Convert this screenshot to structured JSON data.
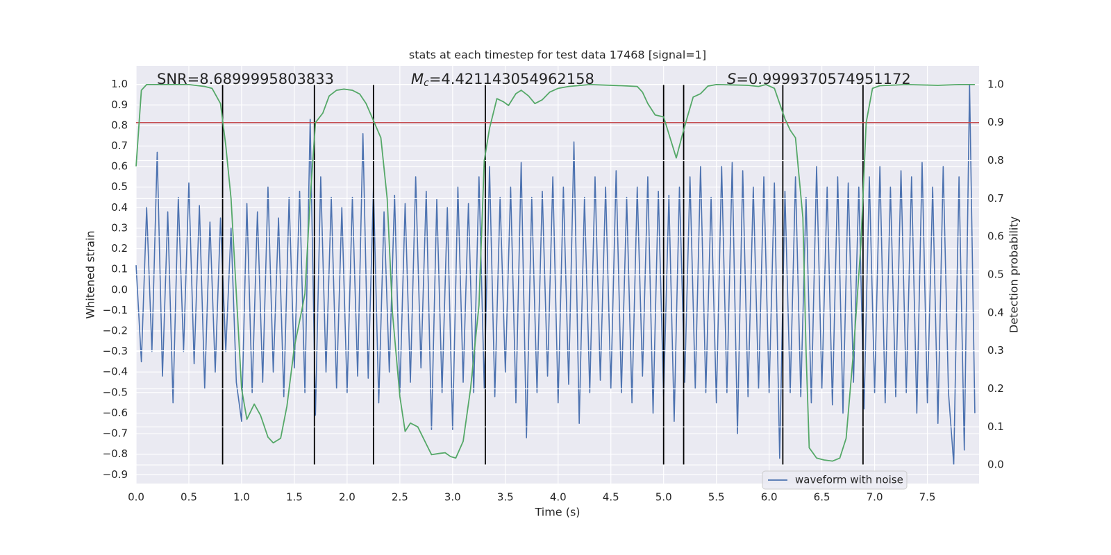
{
  "chart_data": {
    "type": "line",
    "title": "stats at each timestep for test data 17468 [signal=1]",
    "xlabel": "Time (s)",
    "ylabel": "Whitened strain",
    "y2label": "Detection probability",
    "annotations": [
      {
        "text": "SNR=8.6899995803833"
      },
      {
        "symbol": "M",
        "subscript": "c",
        "text": "=4.421143054962158"
      },
      {
        "symbol": "S",
        "text": "=0.9999370574951172"
      }
    ],
    "xlim": [
      0,
      7.99
    ],
    "ylim": [
      -0.943,
      1.09
    ],
    "y2lim": [
      -0.049,
      1.049
    ],
    "xticks": [
      {
        "value": 0,
        "label": "0.0"
      },
      0.5,
      {
        "value": 1,
        "label": "1.0"
      },
      1.5,
      {
        "value": 2,
        "label": "2.0"
      },
      2.5,
      {
        "value": 3,
        "label": "3.0"
      },
      3.5,
      {
        "value": 4,
        "label": "4.0"
      },
      4.5,
      {
        "value": 5,
        "label": "5.0"
      },
      5.5,
      {
        "value": 6,
        "label": "6.0"
      },
      6.5,
      {
        "value": 7,
        "label": "7.0"
      },
      7.5
    ],
    "yticks": [
      {
        "value": -0.9,
        "label": "−0.9"
      },
      {
        "value": -0.8,
        "label": "−0.8"
      },
      {
        "value": -0.7,
        "label": "−0.7"
      },
      {
        "value": -0.6,
        "label": "−0.6"
      },
      {
        "value": -0.5,
        "label": "−0.5"
      },
      {
        "value": -0.4,
        "label": "−0.4"
      },
      {
        "value": -0.3,
        "label": "−0.3"
      },
      {
        "value": -0.2,
        "label": "−0.2"
      },
      {
        "value": -0.1,
        "label": "−0.1"
      },
      {
        "value": 0,
        "label": "0.0"
      },
      0.1,
      0.2,
      0.3,
      0.4,
      0.5,
      0.6,
      0.7,
      0.8,
      0.9,
      {
        "value": 1,
        "label": "1.0"
      }
    ],
    "y2ticks": [
      {
        "value": 0,
        "label": "0.0"
      },
      0.1,
      0.2,
      0.3,
      0.4,
      0.5,
      0.6,
      0.7,
      0.8,
      0.9,
      {
        "value": 1,
        "label": "1.0"
      }
    ],
    "grid": true,
    "legend": "lower right",
    "series": [
      {
        "name": "waveform with noise",
        "color": "#4c72b0",
        "axis": "y",
        "x": [
          0,
          0.05,
          0.1,
          0.15,
          0.2,
          0.25,
          0.3,
          0.35,
          0.4,
          0.45,
          0.5,
          0.55,
          0.6,
          0.65,
          0.7,
          0.75,
          0.8,
          0.85,
          0.9,
          0.95,
          1,
          1.05,
          1.1,
          1.15,
          1.2,
          1.25,
          1.3,
          1.35,
          1.4,
          1.45,
          1.5,
          1.55,
          1.6,
          1.65,
          1.7,
          1.75,
          1.8,
          1.85,
          1.9,
          1.95,
          2,
          2.05,
          2.1,
          2.15,
          2.2,
          2.25,
          2.3,
          2.35,
          2.4,
          2.45,
          2.5,
          2.55,
          2.6,
          2.65,
          2.7,
          2.75,
          2.8,
          2.85,
          2.9,
          2.95,
          3,
          3.05,
          3.1,
          3.15,
          3.2,
          3.25,
          3.3,
          3.35,
          3.4,
          3.45,
          3.5,
          3.55,
          3.6,
          3.65,
          3.7,
          3.75,
          3.8,
          3.85,
          3.9,
          3.95,
          4,
          4.05,
          4.1,
          4.15,
          4.2,
          4.25,
          4.3,
          4.35,
          4.4,
          4.45,
          4.5,
          4.55,
          4.6,
          4.65,
          4.7,
          4.75,
          4.8,
          4.85,
          4.9,
          4.95,
          5,
          5.05,
          5.1,
          5.15,
          5.2,
          5.25,
          5.3,
          5.35,
          5.4,
          5.45,
          5.5,
          5.55,
          5.6,
          5.65,
          5.7,
          5.75,
          5.8,
          5.85,
          5.9,
          5.95,
          6,
          6.05,
          6.1,
          6.15,
          6.2,
          6.25,
          6.3,
          6.35,
          6.4,
          6.45,
          6.5,
          6.55,
          6.6,
          6.65,
          6.7,
          6.75,
          6.8,
          6.85,
          6.9,
          6.95,
          7,
          7.05,
          7.1,
          7.15,
          7.2,
          7.25,
          7.3,
          7.35,
          7.4,
          7.45,
          7.5,
          7.55,
          7.6,
          7.65,
          7.7,
          7.75,
          7.8,
          7.85,
          7.9,
          7.95
        ],
        "values": [
          0.12,
          -0.35,
          0.4,
          -0.3,
          0.67,
          -0.42,
          0.38,
          -0.55,
          0.45,
          -0.3,
          0.52,
          -0.36,
          0.41,
          -0.48,
          0.33,
          -0.4,
          0.35,
          -0.3,
          0.3,
          -0.45,
          -0.64,
          0.42,
          -0.5,
          0.38,
          -0.45,
          0.5,
          -0.4,
          0.35,
          -0.52,
          0.45,
          -0.38,
          0.48,
          -0.5,
          0.83,
          -0.61,
          0.55,
          -0.4,
          0.45,
          -0.48,
          0.4,
          -0.5,
          0.45,
          -0.42,
          0.76,
          -0.43,
          0.5,
          -0.55,
          0.38,
          -0.4,
          0.46,
          -0.5,
          0.42,
          -0.45,
          0.55,
          -0.38,
          0.48,
          -0.68,
          0.44,
          -0.5,
          0.4,
          -0.68,
          0.5,
          -0.45,
          0.42,
          -0.5,
          0.55,
          -0.48,
          0.6,
          -0.52,
          0.45,
          -0.4,
          0.5,
          -0.55,
          0.62,
          -0.72,
          0.45,
          -0.5,
          0.48,
          -0.42,
          0.55,
          -0.55,
          0.5,
          -0.46,
          0.72,
          -0.65,
          0.45,
          -0.5,
          0.55,
          -0.44,
          0.5,
          -0.48,
          0.58,
          -0.5,
          0.45,
          -0.55,
          0.5,
          -0.42,
          0.55,
          -0.6,
          0.48,
          -0.52,
          0.46,
          -0.64,
          0.5,
          -0.45,
          0.55,
          -0.48,
          0.6,
          -0.5,
          0.45,
          -0.55,
          0.6,
          -0.5,
          0.62,
          -0.7,
          0.58,
          -0.52,
          0.5,
          -0.48,
          0.55,
          -0.5,
          0.52,
          -0.82,
          0.48,
          -0.5,
          0.55,
          -0.52,
          0.45,
          -0.55,
          0.6,
          -0.48,
          0.5,
          -0.56,
          0.55,
          -0.6,
          0.52,
          -0.45,
          0.5,
          -0.58,
          0.55,
          -0.5,
          0.6,
          -0.55,
          0.5,
          -0.52,
          0.58,
          -0.5,
          0.55,
          -0.6,
          0.62,
          -0.55,
          0.5,
          -0.65,
          0.6,
          -0.5,
          -0.85,
          0.55,
          -0.78,
          1.0,
          -0.6
        ]
      },
      {
        "color": "#55a868",
        "axis": "y2",
        "x": [
          0,
          0.05,
          0.1,
          0.3,
          0.5,
          0.65,
          0.72,
          0.8,
          0.85,
          0.9,
          1,
          1.05,
          1.12,
          1.18,
          1.25,
          1.3,
          1.37,
          1.43,
          1.5,
          1.58,
          1.6,
          1.65,
          1.7,
          1.77,
          1.83,
          1.9,
          1.97,
          2.05,
          2.12,
          2.18,
          2.25,
          2.32,
          2.38,
          2.43,
          2.5,
          2.55,
          2.6,
          2.67,
          2.75,
          2.8,
          2.87,
          2.93,
          2.98,
          3.03,
          3.1,
          3.17,
          3.25,
          3.3,
          3.35,
          3.42,
          3.48,
          3.53,
          3.6,
          3.65,
          3.72,
          3.78,
          3.85,
          3.92,
          4,
          4.1,
          4.3,
          4.6,
          4.75,
          4.8,
          4.85,
          4.92,
          5,
          5.05,
          5.12,
          5.18,
          5.22,
          5.28,
          5.35,
          5.42,
          5.5,
          5.8,
          5.9,
          5.97,
          6.05,
          6.1,
          6.15,
          6.2,
          6.25,
          6.32,
          6.35,
          6.38,
          6.45,
          6.52,
          6.6,
          6.67,
          6.73,
          6.8,
          6.87,
          6.92,
          6.98,
          7.05,
          7.3,
          7.6,
          7.8,
          7.95
        ],
        "values": [
          0.785,
          0.985,
          1.0,
          1.0,
          1.0,
          0.995,
          0.99,
          0.95,
          0.84,
          0.7,
          0.2,
          0.12,
          0.16,
          0.13,
          0.073,
          0.058,
          0.07,
          0.155,
          0.31,
          0.42,
          0.45,
          0.7,
          0.9,
          0.925,
          0.97,
          0.985,
          0.988,
          0.985,
          0.975,
          0.95,
          0.905,
          0.86,
          0.7,
          0.4,
          0.18,
          0.088,
          0.11,
          0.1,
          0.055,
          0.027,
          0.03,
          0.032,
          0.022,
          0.018,
          0.062,
          0.2,
          0.42,
          0.8,
          0.885,
          0.963,
          0.955,
          0.945,
          0.976,
          0.985,
          0.97,
          0.95,
          0.96,
          0.98,
          0.99,
          0.995,
          1.0,
          0.997,
          0.995,
          0.98,
          0.95,
          0.92,
          0.915,
          0.87,
          0.807,
          0.87,
          0.91,
          0.967,
          0.976,
          0.996,
          1.0,
          0.998,
          0.995,
          1.0,
          0.99,
          0.95,
          0.91,
          0.88,
          0.86,
          0.65,
          0.3,
          0.045,
          0.018,
          0.013,
          0.01,
          0.018,
          0.07,
          0.3,
          0.58,
          0.9,
          0.99,
          0.997,
          1.0,
          0.998,
          1.0,
          1.0
        ]
      }
    ],
    "vlines": {
      "x": [
        0.82,
        1.69,
        2.25,
        3.31,
        5.0,
        5.19,
        6.13,
        6.89
      ],
      "ymin": -0.85,
      "ymax": 1.0,
      "color": "#000000"
    },
    "threshold": {
      "value": 0.9,
      "axis": "y2",
      "color": "#c44e52"
    }
  }
}
